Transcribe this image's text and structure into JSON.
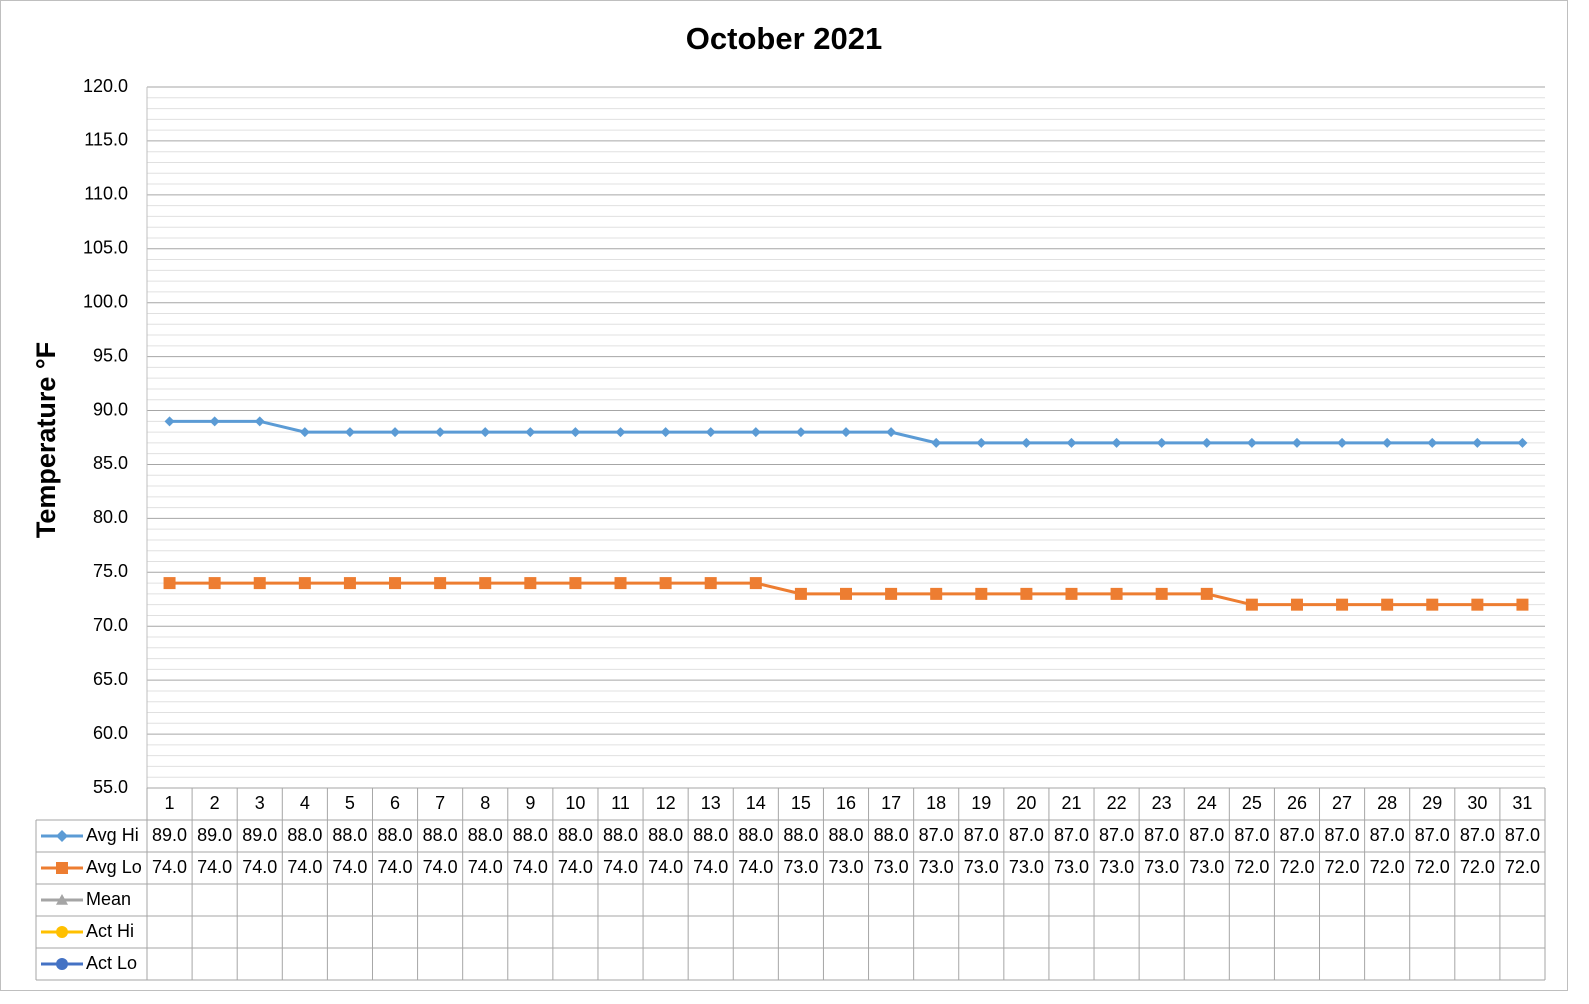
{
  "chart_data": {
    "type": "line",
    "title": "October 2021",
    "y_label": "Temperature °F",
    "categories": [
      "1",
      "2",
      "3",
      "4",
      "5",
      "6",
      "7",
      "8",
      "9",
      "10",
      "11",
      "12",
      "13",
      "14",
      "15",
      "16",
      "17",
      "18",
      "19",
      "20",
      "21",
      "22",
      "23",
      "24",
      "25",
      "26",
      "27",
      "28",
      "29",
      "30",
      "31"
    ],
    "series": [
      {
        "name": "Avg Hi",
        "color": "#5b9bd5",
        "marker": "diamond",
        "values": [
          89,
          89,
          89,
          88,
          88,
          88,
          88,
          88,
          88,
          88,
          88,
          88,
          88,
          88,
          88,
          88,
          88,
          87,
          87,
          87,
          87,
          87,
          87,
          87,
          87,
          87,
          87,
          87,
          87,
          87,
          87
        ],
        "value_labels": [
          "89.0",
          "89.0",
          "89.0",
          "88.0",
          "88.0",
          "88.0",
          "88.0",
          "88.0",
          "88.0",
          "88.0",
          "88.0",
          "88.0",
          "88.0",
          "88.0",
          "88.0",
          "88.0",
          "88.0",
          "87.0",
          "87.0",
          "87.0",
          "87.0",
          "87.0",
          "87.0",
          "87.0",
          "87.0",
          "87.0",
          "87.0",
          "87.0",
          "87.0",
          "87.0",
          "87.0"
        ]
      },
      {
        "name": "Avg Lo",
        "color": "#ed7d31",
        "marker": "square",
        "values": [
          74,
          74,
          74,
          74,
          74,
          74,
          74,
          74,
          74,
          74,
          74,
          74,
          74,
          74,
          73,
          73,
          73,
          73,
          73,
          73,
          73,
          73,
          73,
          73,
          72,
          72,
          72,
          72,
          72,
          72,
          72
        ],
        "value_labels": [
          "74.0",
          "74.0",
          "74.0",
          "74.0",
          "74.0",
          "74.0",
          "74.0",
          "74.0",
          "74.0",
          "74.0",
          "74.0",
          "74.0",
          "74.0",
          "74.0",
          "73.0",
          "73.0",
          "73.0",
          "73.0",
          "73.0",
          "73.0",
          "73.0",
          "73.0",
          "73.0",
          "73.0",
          "72.0",
          "72.0",
          "72.0",
          "72.0",
          "72.0",
          "72.0",
          "72.0"
        ]
      },
      {
        "name": "Mean",
        "color": "#a5a5a5",
        "marker": "triangle",
        "values": [
          null,
          null,
          null,
          null,
          null,
          null,
          null,
          null,
          null,
          null,
          null,
          null,
          null,
          null,
          null,
          null,
          null,
          null,
          null,
          null,
          null,
          null,
          null,
          null,
          null,
          null,
          null,
          null,
          null,
          null,
          null
        ]
      },
      {
        "name": "Act Hi",
        "color": "#ffc000",
        "marker": "circle",
        "values": [
          null,
          null,
          null,
          null,
          null,
          null,
          null,
          null,
          null,
          null,
          null,
          null,
          null,
          null,
          null,
          null,
          null,
          null,
          null,
          null,
          null,
          null,
          null,
          null,
          null,
          null,
          null,
          null,
          null,
          null,
          null
        ]
      },
      {
        "name": "Act Lo",
        "color": "#4472c4",
        "marker": "circle",
        "values": [
          null,
          null,
          null,
          null,
          null,
          null,
          null,
          null,
          null,
          null,
          null,
          null,
          null,
          null,
          null,
          null,
          null,
          null,
          null,
          null,
          null,
          null,
          null,
          null,
          null,
          null,
          null,
          null,
          null,
          null,
          null
        ]
      }
    ],
    "ylim": [
      55,
      120
    ],
    "yticks": [
      {
        "value": 55,
        "label": "55.0"
      },
      {
        "value": 60,
        "label": "60.0"
      },
      {
        "value": 65,
        "label": "65.0"
      },
      {
        "value": 70,
        "label": "70.0"
      },
      {
        "value": 75,
        "label": "75.0"
      },
      {
        "value": 80,
        "label": "80.0"
      },
      {
        "value": 85,
        "label": "85.0"
      },
      {
        "value": 90,
        "label": "90.0"
      },
      {
        "value": 95,
        "label": "95.0"
      },
      {
        "value": 100,
        "label": "100.0"
      },
      {
        "value": 105,
        "label": "105.0"
      },
      {
        "value": 110,
        "label": "110.0"
      },
      {
        "value": 115,
        "label": "115.0"
      },
      {
        "value": 120,
        "label": "120.0"
      }
    ],
    "grid": true,
    "minor_grid": true,
    "data_table": true
  }
}
